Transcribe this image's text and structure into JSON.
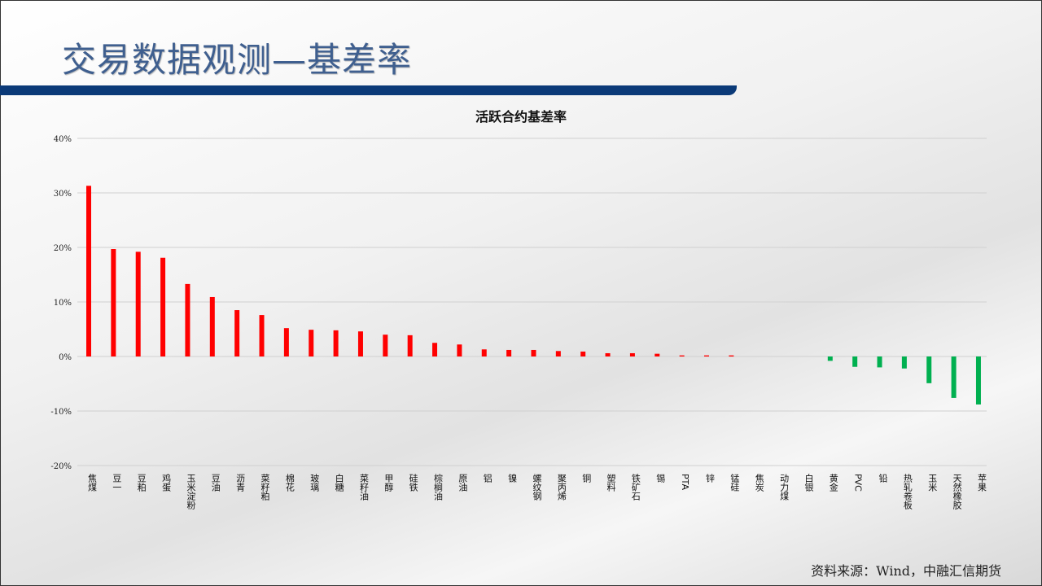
{
  "header": {
    "title": "交易数据观测—基差率"
  },
  "footer": {
    "source": "资料来源：Wind，中融汇信期货"
  },
  "colors": {
    "positive": "#ff0000",
    "negative": "#00b050",
    "title": "#3f5f8f",
    "band": "#0b3a78"
  },
  "chart_data": {
    "type": "bar",
    "title": "活跃合约基差率",
    "xlabel": "",
    "ylabel": "",
    "ylim": [
      -20,
      40
    ],
    "yticks": [
      "40%",
      "30%",
      "20%",
      "10%",
      "0%",
      "-10%",
      "-20%"
    ],
    "ytick_values": [
      40,
      30,
      20,
      10,
      0,
      -10,
      -20
    ],
    "grid": true,
    "categories": [
      "焦煤",
      "豆一",
      "豆粕",
      "鸡蛋",
      "玉米淀粉",
      "豆油",
      "沥青",
      "菜籽粕",
      "棉花",
      "玻璃",
      "白糖",
      "菜籽油",
      "甲醇",
      "硅铁",
      "棕榈油",
      "原油",
      "铝",
      "镍",
      "螺纹钢",
      "聚丙烯",
      "铜",
      "塑料",
      "铁矿石",
      "锡",
      "PTA",
      "锌",
      "锰硅",
      "焦炭",
      "动力煤",
      "白银",
      "黄金",
      "PVC",
      "铅",
      "热轧卷板",
      "玉米",
      "天然橡胶",
      "苹果"
    ],
    "values": [
      31.3,
      19.7,
      19.2,
      18.1,
      13.3,
      10.9,
      8.5,
      7.6,
      5.2,
      4.9,
      4.8,
      4.6,
      4.0,
      3.9,
      2.5,
      2.2,
      1.3,
      1.2,
      1.2,
      1.0,
      0.9,
      0.6,
      0.6,
      0.5,
      0.2,
      0.2,
      0.2,
      0,
      0,
      0,
      -0.8,
      -1.9,
      -2.0,
      -2.2,
      -4.9,
      -7.6,
      -8.8
    ]
  }
}
